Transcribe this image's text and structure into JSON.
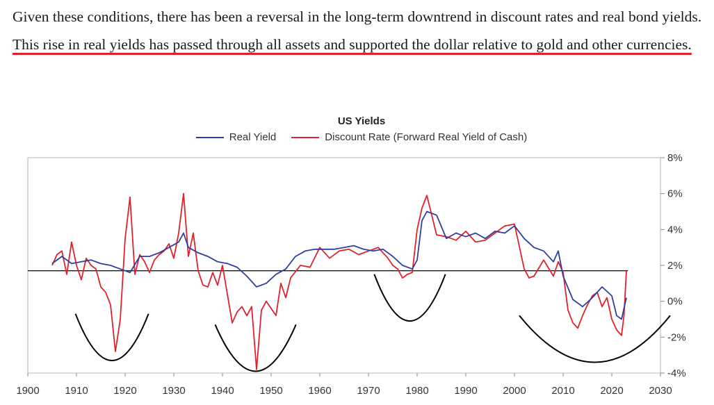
{
  "paragraph": {
    "text_plain": "Given these conditions, there has been a reversal in the long-term downtrend in discount rates and real bond yields. ",
    "text_highlight": "This rise in real yields has passed through all assets and supported the dollar relative to gold and other currencies."
  },
  "colors": {
    "real_yield": "#2e3f9e",
    "discount_rate": "#e0212b",
    "highlight_underline": "#e0212b"
  },
  "chart_data": {
    "type": "line",
    "title": "US Yields",
    "xlabel": "",
    "ylabel": "",
    "xlim": [
      1900,
      2030
    ],
    "ylim": [
      -4,
      8
    ],
    "x_ticks": [
      "1900",
      "1910",
      "1920",
      "1930",
      "1940",
      "1950",
      "1960",
      "1970",
      "1980",
      "1990",
      "2000",
      "2010",
      "2020",
      "2030"
    ],
    "y_ticks": [
      "8%",
      "6%",
      "4%",
      "2%",
      "0%",
      "-2%",
      "-4%"
    ],
    "y_tick_values": [
      8,
      6,
      4,
      2,
      0,
      -2,
      -4
    ],
    "y_axis_side": "right",
    "grid": false,
    "legend_position": "top-center",
    "reference_line": 1.7,
    "series": [
      {
        "name": "Real Yield",
        "color": "#2e3f9e",
        "x": [
          1905,
          1907,
          1909,
          1911,
          1913,
          1915,
          1917,
          1919,
          1921,
          1923,
          1925,
          1927,
          1929,
          1931,
          1932,
          1933,
          1935,
          1937,
          1939,
          1941,
          1943,
          1945,
          1947,
          1949,
          1951,
          1953,
          1955,
          1957,
          1959,
          1961,
          1963,
          1965,
          1967,
          1969,
          1971,
          1973,
          1975,
          1977,
          1979,
          1980,
          1981,
          1982,
          1984,
          1986,
          1988,
          1990,
          1992,
          1994,
          1996,
          1998,
          2000,
          2002,
          2004,
          2006,
          2008,
          2009,
          2010,
          2012,
          2014,
          2016,
          2018,
          2020,
          2021,
          2022,
          2023
        ],
        "y": [
          2.1,
          2.5,
          2.1,
          2.2,
          2.3,
          2.1,
          2.0,
          1.8,
          1.6,
          2.5,
          2.5,
          2.7,
          3.0,
          3.3,
          3.8,
          3.0,
          2.7,
          2.5,
          2.2,
          2.1,
          1.9,
          1.4,
          0.8,
          1.0,
          1.5,
          1.8,
          2.5,
          2.8,
          2.9,
          2.9,
          2.9,
          3.0,
          3.1,
          2.9,
          2.8,
          2.9,
          2.5,
          2.0,
          1.8,
          2.3,
          4.5,
          5.0,
          4.8,
          3.5,
          3.8,
          3.6,
          3.8,
          3.5,
          3.9,
          3.8,
          4.2,
          3.5,
          3.0,
          2.8,
          2.2,
          2.8,
          1.4,
          0.1,
          -0.3,
          0.2,
          0.8,
          0.3,
          -0.8,
          -1.0,
          0.2
        ]
      },
      {
        "name": "Discount Rate (Forward Real Yield of Cash)",
        "color": "#e0212b",
        "x": [
          1905,
          1906,
          1907,
          1908,
          1909,
          1910,
          1911,
          1912,
          1913,
          1914,
          1915,
          1916,
          1917,
          1918,
          1919,
          1920,
          1921,
          1922,
          1923,
          1924,
          1925,
          1926,
          1927,
          1928,
          1929,
          1930,
          1931,
          1932,
          1933,
          1934,
          1935,
          1936,
          1937,
          1938,
          1939,
          1940,
          1941,
          1942,
          1943,
          1944,
          1945,
          1946,
          1947,
          1948,
          1949,
          1950,
          1951,
          1952,
          1953,
          1954,
          1956,
          1958,
          1960,
          1962,
          1964,
          1966,
          1968,
          1970,
          1972,
          1974,
          1975,
          1976,
          1977,
          1978,
          1979,
          1980,
          1981,
          1982,
          1983,
          1984,
          1986,
          1988,
          1990,
          1992,
          1994,
          1996,
          1998,
          2000,
          2002,
          2003,
          2004,
          2006,
          2008,
          2009,
          2010,
          2011,
          2012,
          2013,
          2014,
          2015,
          2016,
          2017,
          2018,
          2019,
          2020,
          2021,
          2022,
          2022.5,
          2023
        ],
        "y": [
          2.0,
          2.6,
          2.8,
          1.5,
          3.3,
          2.0,
          1.2,
          2.4,
          2.0,
          1.8,
          0.8,
          0.5,
          -0.2,
          -2.8,
          -1.0,
          3.5,
          5.8,
          1.5,
          2.6,
          2.2,
          1.6,
          2.3,
          2.6,
          2.8,
          3.2,
          2.4,
          3.8,
          6.0,
          2.5,
          3.8,
          1.7,
          0.9,
          0.8,
          1.6,
          0.9,
          2.0,
          0.4,
          -1.2,
          -0.6,
          -0.3,
          -0.8,
          -0.3,
          -3.8,
          -0.5,
          0.0,
          -0.4,
          -0.8,
          1.0,
          0.2,
          1.3,
          2.0,
          1.9,
          3.0,
          2.4,
          2.8,
          2.9,
          2.6,
          2.8,
          3.0,
          2.4,
          2.0,
          1.8,
          1.3,
          1.5,
          1.6,
          4.0,
          5.2,
          5.9,
          4.8,
          3.7,
          3.6,
          3.4,
          3.9,
          3.3,
          3.4,
          3.8,
          4.2,
          4.3,
          1.8,
          1.3,
          1.4,
          2.3,
          1.4,
          2.2,
          1.6,
          -0.5,
          -1.2,
          -1.5,
          -0.8,
          -0.2,
          0.3,
          0.5,
          -0.3,
          0.2,
          -1.0,
          -1.6,
          -1.9,
          -0.8,
          1.7
        ]
      }
    ],
    "troughs": [
      {
        "center": 1917.3,
        "depth": -3.3
      },
      {
        "center": 1946.8,
        "depth": -3.9
      },
      {
        "center": 1978.5,
        "depth": -1.1
      },
      {
        "center": 2016.5,
        "depth": -3.4
      }
    ]
  }
}
